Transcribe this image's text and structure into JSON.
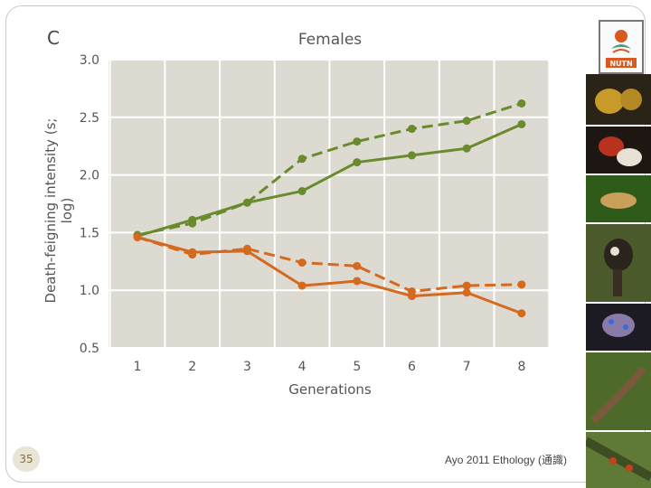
{
  "slide": {
    "page_number": "35",
    "footer": "Ayo 2011 Ethology (通識)"
  },
  "logo": {
    "text": "NUTN",
    "icon": "university-logo-icon"
  },
  "photos": [
    {
      "name": "golden-frog-photo",
      "color": "#a07a1c"
    },
    {
      "name": "red-frog-photo",
      "color": "#8a2a1a"
    },
    {
      "name": "tree-frog-photo",
      "color": "#2e5a1a"
    },
    {
      "name": "marmoset-photo",
      "color": "#3d3428"
    },
    {
      "name": "octopus-photo",
      "color": "#6a5a78"
    },
    {
      "name": "lizard-photo",
      "color": "#4e6a2a"
    },
    {
      "name": "beetle-photo",
      "color": "#5e7a36"
    }
  ],
  "chart_data": {
    "type": "line",
    "panel_label": "C",
    "title": "Females",
    "xlabel": "Generations",
    "ylabel": "Death-feigning intensity (s; log)",
    "x": [
      1,
      2,
      3,
      4,
      5,
      6,
      7,
      8
    ],
    "x_ticks": [
      "1",
      "2",
      "3",
      "4",
      "5",
      "6",
      "7",
      "8"
    ],
    "ylim": [
      0.5,
      3.0
    ],
    "y_ticks": [
      "0.5",
      "1.0",
      "1.5",
      "2.0",
      "2.5",
      "3.0"
    ],
    "grid": true,
    "series": [
      {
        "name": "green-dashed",
        "color": "#6a8a2e",
        "dash": true,
        "values": [
          1.48,
          1.58,
          1.76,
          2.14,
          2.29,
          2.4,
          2.47,
          2.62
        ]
      },
      {
        "name": "green-solid",
        "color": "#6a8a2e",
        "dash": false,
        "values": [
          1.47,
          1.61,
          1.76,
          1.86,
          2.11,
          2.17,
          2.23,
          2.44
        ]
      },
      {
        "name": "orange-dashed",
        "color": "#d4691f",
        "dash": true,
        "values": [
          1.46,
          1.31,
          1.36,
          1.24,
          1.21,
          0.99,
          1.04,
          1.05
        ]
      },
      {
        "name": "orange-solid",
        "color": "#d4691f",
        "dash": false,
        "values": [
          1.46,
          1.33,
          1.34,
          1.04,
          1.08,
          0.95,
          0.98,
          0.8
        ]
      }
    ]
  }
}
